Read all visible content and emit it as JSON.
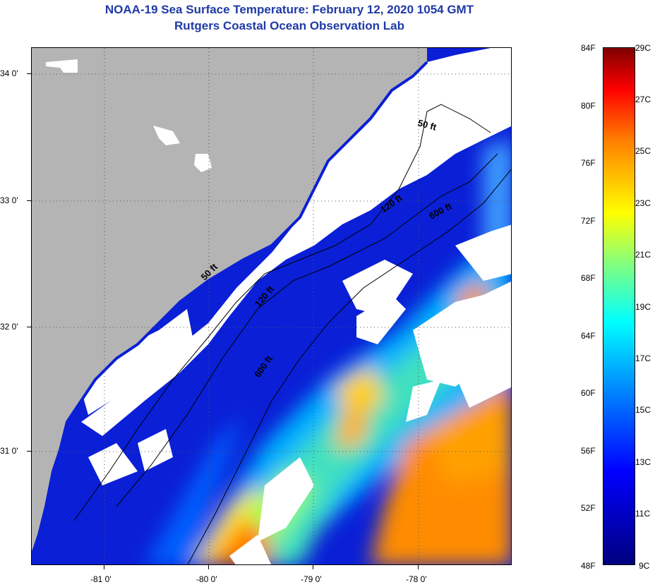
{
  "title": "NOAA-19 Sea Surface Temperature:  February 12, 2020 1054 GMT",
  "subtitle": "Rutgers Coastal Ocean Observation Lab",
  "map": {
    "lat_labels": [
      "34 0'",
      "33 0'",
      "32 0'",
      "31 0'"
    ],
    "lon_labels": [
      "-81 0'",
      "-80 0'",
      "-79 0'",
      "-78 0'"
    ],
    "contours": [
      "50 ft",
      "120 ft",
      "600 ft",
      "50 ft",
      "120 ft",
      "600 ft"
    ],
    "land_color": "#b4b4b4",
    "cloud_color": "#ffffff"
  },
  "colorbar": {
    "fahrenheit": [
      "84F",
      "80F",
      "76F",
      "72F",
      "68F",
      "64F",
      "60F",
      "56F",
      "52F",
      "48F"
    ],
    "celsius": [
      "29C",
      "27C",
      "25C",
      "23C",
      "21C",
      "19C",
      "17C",
      "15C",
      "13C",
      "11C",
      "9C"
    ]
  }
}
